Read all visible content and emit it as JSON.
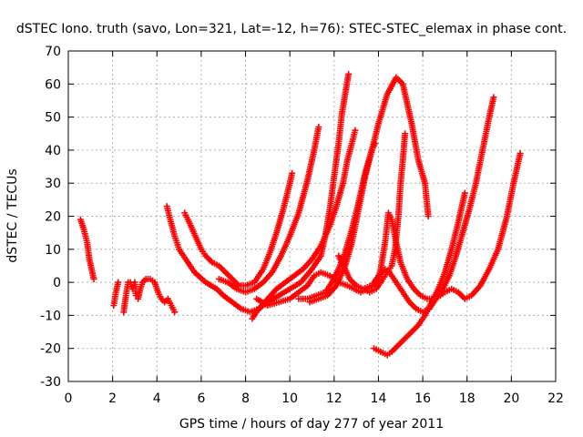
{
  "chart_data": {
    "type": "scatter",
    "title": "dSTEC Iono. truth (savo, Lon=321, Lat=-12, h=76): STEC-STEC_elemax in phase cont.",
    "xlabel": "GPS time / hours of day 277 of year 2011",
    "ylabel": "dSTEC  / TECUs",
    "xlim": [
      0,
      22
    ],
    "ylim": [
      -30,
      70
    ],
    "xticks": [
      0,
      2,
      4,
      6,
      8,
      10,
      12,
      14,
      16,
      18,
      20,
      22
    ],
    "yticks": [
      -30,
      -20,
      -10,
      0,
      10,
      20,
      30,
      40,
      50,
      60,
      70
    ],
    "grid": true,
    "marker": "+",
    "color": "#ff0000",
    "series": [
      {
        "points": [
          [
            0.55,
            19
          ],
          [
            0.7,
            16
          ],
          [
            0.85,
            12
          ],
          [
            0.95,
            7
          ],
          [
            1.05,
            4
          ],
          [
            1.15,
            1
          ]
        ]
      },
      {
        "points": [
          [
            2.05,
            -7
          ],
          [
            2.15,
            -3
          ],
          [
            2.25,
            0
          ]
        ]
      },
      {
        "points": [
          [
            2.5,
            -9
          ],
          [
            2.6,
            -4
          ],
          [
            2.7,
            0
          ],
          [
            2.8,
            0
          ],
          [
            2.9,
            -2
          ],
          [
            3.0,
            0
          ],
          [
            3.05,
            -4
          ],
          [
            3.15,
            -5
          ],
          [
            3.25,
            -2
          ],
          [
            3.35,
            0
          ],
          [
            3.5,
            1
          ],
          [
            3.7,
            1
          ],
          [
            3.9,
            0
          ],
          [
            4.05,
            -3
          ],
          [
            4.2,
            -5
          ],
          [
            4.35,
            -6
          ],
          [
            4.5,
            -5
          ],
          [
            4.65,
            -7
          ],
          [
            4.8,
            -9
          ]
        ]
      },
      {
        "points": [
          [
            4.45,
            23
          ],
          [
            4.6,
            19
          ],
          [
            4.8,
            14
          ],
          [
            5.0,
            10
          ],
          [
            5.3,
            7
          ],
          [
            5.7,
            3
          ],
          [
            6.2,
            0
          ],
          [
            6.7,
            -2
          ],
          [
            7.0,
            -4
          ],
          [
            7.4,
            -6
          ],
          [
            7.8,
            -8
          ],
          [
            8.2,
            -9
          ],
          [
            8.6,
            -8
          ],
          [
            9.0,
            -5
          ],
          [
            9.4,
            -2
          ],
          [
            9.8,
            0
          ],
          [
            10.2,
            2
          ],
          [
            10.6,
            4
          ],
          [
            11.0,
            7
          ],
          [
            11.4,
            11
          ],
          [
            11.8,
            17
          ],
          [
            12.1,
            23
          ],
          [
            12.4,
            30
          ],
          [
            12.6,
            37
          ],
          [
            12.8,
            42
          ],
          [
            12.95,
            46
          ]
        ]
      },
      {
        "points": [
          [
            5.25,
            21
          ],
          [
            5.4,
            19
          ],
          [
            5.6,
            16
          ],
          [
            5.8,
            13
          ],
          [
            6.0,
            10
          ],
          [
            6.2,
            8
          ],
          [
            6.5,
            6
          ],
          [
            6.8,
            5
          ],
          [
            7.1,
            3
          ],
          [
            7.4,
            1
          ],
          [
            7.7,
            -1
          ],
          [
            8.0,
            -1
          ],
          [
            8.4,
            0
          ],
          [
            8.8,
            4
          ],
          [
            9.1,
            9
          ],
          [
            9.4,
            15
          ],
          [
            9.7,
            22
          ],
          [
            10.0,
            30
          ],
          [
            10.1,
            33
          ]
        ]
      },
      {
        "points": [
          [
            6.8,
            1
          ],
          [
            7.2,
            0
          ],
          [
            7.6,
            -2
          ],
          [
            8.0,
            -3
          ],
          [
            8.4,
            -2
          ],
          [
            8.8,
            0
          ],
          [
            9.2,
            3
          ],
          [
            9.6,
            8
          ],
          [
            10.0,
            14
          ],
          [
            10.4,
            21
          ],
          [
            10.8,
            31
          ],
          [
            11.1,
            40
          ],
          [
            11.3,
            47
          ]
        ]
      },
      {
        "points": [
          [
            8.3,
            -11
          ],
          [
            8.6,
            -8
          ],
          [
            9.0,
            -6
          ],
          [
            9.5,
            -4
          ],
          [
            10.0,
            -2
          ],
          [
            10.5,
            0
          ],
          [
            11.0,
            4
          ],
          [
            11.4,
            8
          ],
          [
            11.6,
            14
          ],
          [
            11.8,
            22
          ],
          [
            12.0,
            32
          ],
          [
            12.2,
            42
          ],
          [
            12.35,
            51
          ],
          [
            12.5,
            57
          ],
          [
            12.65,
            63
          ]
        ]
      },
      {
        "points": [
          [
            8.5,
            -5
          ],
          [
            9.0,
            -7
          ],
          [
            9.5,
            -6
          ],
          [
            10.0,
            -5
          ],
          [
            10.4,
            -3
          ],
          [
            10.8,
            -1
          ],
          [
            11.1,
            2
          ],
          [
            11.4,
            3
          ],
          [
            11.8,
            2
          ],
          [
            12.2,
            0
          ],
          [
            12.6,
            -1
          ],
          [
            12.9,
            -2
          ],
          [
            13.2,
            -3
          ],
          [
            13.5,
            -2
          ],
          [
            13.8,
            -1
          ],
          [
            14.0,
            1
          ],
          [
            14.1,
            4
          ],
          [
            14.3,
            12
          ],
          [
            14.45,
            21
          ],
          [
            14.6,
            19
          ],
          [
            14.8,
            12
          ],
          [
            15.0,
            6
          ],
          [
            15.3,
            1
          ],
          [
            15.6,
            -2
          ],
          [
            15.9,
            -4
          ],
          [
            16.2,
            -5
          ],
          [
            16.5,
            -5
          ],
          [
            16.8,
            -4
          ],
          [
            17.0,
            -3
          ],
          [
            17.3,
            -2
          ],
          [
            17.6,
            -3
          ],
          [
            17.9,
            -5
          ],
          [
            18.2,
            -4
          ],
          [
            18.6,
            -1
          ],
          [
            19.0,
            4
          ],
          [
            19.4,
            10
          ],
          [
            19.8,
            20
          ],
          [
            20.1,
            30
          ],
          [
            20.4,
            39
          ]
        ]
      },
      {
        "points": [
          [
            10.4,
            -5
          ],
          [
            10.8,
            -5
          ],
          [
            11.2,
            -4
          ],
          [
            11.6,
            -3
          ],
          [
            11.9,
            0
          ],
          [
            12.2,
            4
          ],
          [
            12.5,
            9
          ],
          [
            12.8,
            16
          ],
          [
            13.1,
            24
          ],
          [
            13.4,
            33
          ],
          [
            13.7,
            40
          ],
          [
            13.85,
            42
          ]
        ]
      },
      {
        "points": [
          [
            10.9,
            -6
          ],
          [
            11.3,
            -5
          ],
          [
            11.7,
            -4
          ],
          [
            12.1,
            -1
          ],
          [
            12.5,
            5
          ],
          [
            12.8,
            12
          ],
          [
            13.1,
            22
          ],
          [
            13.4,
            32
          ],
          [
            13.7,
            40
          ],
          [
            14.0,
            48
          ],
          [
            14.4,
            57
          ],
          [
            14.8,
            62
          ],
          [
            15.1,
            60
          ],
          [
            15.5,
            48
          ],
          [
            15.8,
            37
          ],
          [
            16.1,
            30
          ],
          [
            16.25,
            20
          ]
        ]
      },
      {
        "points": [
          [
            12.2,
            8
          ],
          [
            12.5,
            4
          ],
          [
            12.7,
            1
          ],
          [
            13.0,
            -1
          ],
          [
            13.3,
            -2
          ],
          [
            13.6,
            -3
          ],
          [
            13.9,
            -2
          ],
          [
            14.2,
            1
          ],
          [
            14.4,
            3
          ],
          [
            14.6,
            5
          ],
          [
            14.75,
            10
          ],
          [
            14.9,
            20
          ],
          [
            15.0,
            30
          ],
          [
            15.1,
            37
          ],
          [
            15.2,
            45
          ]
        ]
      },
      {
        "points": [
          [
            13.3,
            -2
          ],
          [
            13.7,
            -1
          ],
          [
            14.0,
            2
          ],
          [
            14.3,
            4
          ],
          [
            14.5,
            3
          ],
          [
            14.8,
            0
          ],
          [
            15.1,
            -3
          ],
          [
            15.4,
            -6
          ],
          [
            15.7,
            -8
          ],
          [
            16.0,
            -9
          ],
          [
            16.3,
            -8
          ],
          [
            16.6,
            -5
          ],
          [
            16.9,
            -2
          ],
          [
            17.2,
            2
          ],
          [
            17.5,
            8
          ],
          [
            17.8,
            15
          ],
          [
            18.1,
            22
          ],
          [
            18.4,
            30
          ],
          [
            18.7,
            40
          ],
          [
            19.0,
            50
          ],
          [
            19.2,
            56
          ]
        ]
      },
      {
        "points": [
          [
            13.8,
            -20
          ],
          [
            14.1,
            -21
          ],
          [
            14.4,
            -22
          ],
          [
            14.6,
            -21
          ],
          [
            14.9,
            -19
          ],
          [
            15.2,
            -17
          ],
          [
            15.5,
            -15
          ],
          [
            15.8,
            -13
          ],
          [
            16.1,
            -10
          ],
          [
            16.4,
            -6
          ],
          [
            16.7,
            -2
          ],
          [
            17.0,
            3
          ],
          [
            17.3,
            10
          ],
          [
            17.6,
            18
          ],
          [
            17.8,
            24
          ],
          [
            17.9,
            27
          ]
        ]
      }
    ]
  }
}
